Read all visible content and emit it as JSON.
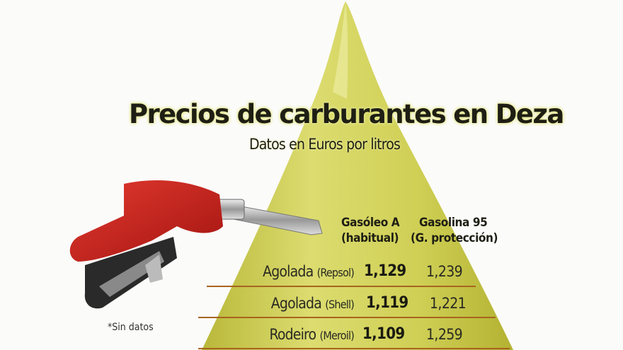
{
  "title": "Precios de carburantes en Deza",
  "subtitle": "Datos en Euros por litros",
  "note": "*Sin datos",
  "colors": {
    "drop": "#c9c84a",
    "divider": "#a8641e",
    "pump": "#c8201e"
  },
  "chart_data": {
    "type": "table",
    "columns": [
      {
        "name": "Gasóleo A",
        "sub": "(habitual)"
      },
      {
        "name": "Gasolina 95",
        "sub": "(G. protección)"
      }
    ],
    "rows": [
      {
        "place": "Agolada",
        "brand": "(Repsol)",
        "values": [
          "1,129",
          "1,239"
        ]
      },
      {
        "place": "Agolada",
        "brand": "(Shell)",
        "values": [
          "1,119",
          "1,221"
        ]
      },
      {
        "place": "Rodeiro",
        "brand": "(Meroil)",
        "values": [
          "1,109",
          "1,259"
        ]
      }
    ]
  }
}
